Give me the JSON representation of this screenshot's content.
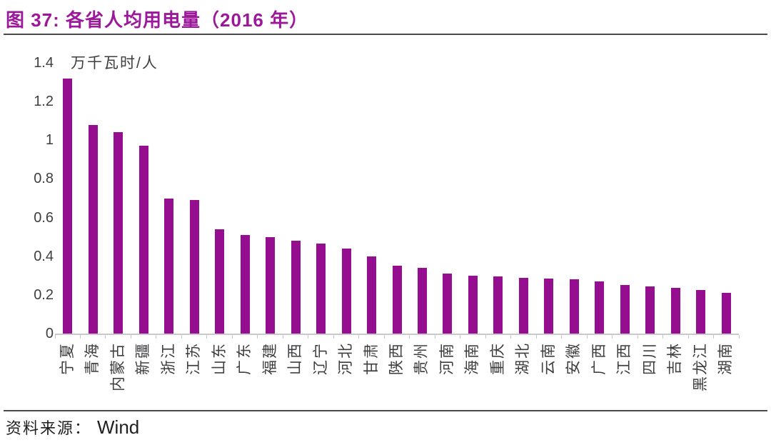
{
  "header": {
    "title": "图 37: 各省人均用电量（2016 年）"
  },
  "footer": {
    "source_label": "资料来源：",
    "source_value": "Wind"
  },
  "colors": {
    "title_accent": "#9C189A",
    "rule": "#4A4A4C",
    "axis": "#C9C9CB",
    "text": "#3E3E40"
  },
  "chart_data": {
    "type": "bar",
    "title": "各省人均用电量（2016 年）",
    "unit_label": "万千瓦时/人",
    "xlabel": "",
    "ylabel": "万千瓦时/人",
    "ylim": [
      0,
      1.4
    ],
    "yticks": [
      1.4,
      1.2,
      1,
      0.8,
      0.6,
      0.4,
      0.2,
      0
    ],
    "grid": false,
    "legend": "none",
    "bar_color": "#950E8F",
    "categories": [
      "宁夏",
      "青海",
      "内蒙古",
      "新疆",
      "浙江",
      "江苏",
      "山东",
      "广东",
      "福建",
      "山西",
      "辽宁",
      "河北",
      "甘肃",
      "陕西",
      "贵州",
      "河南",
      "海南",
      "重庆",
      "湖北",
      "云南",
      "安徽",
      "广西",
      "江西",
      "四川",
      "吉林",
      "黑龙江",
      "湖南"
    ],
    "values": [
      1.32,
      1.08,
      1.04,
      0.97,
      0.7,
      0.69,
      0.54,
      0.51,
      0.5,
      0.48,
      0.465,
      0.44,
      0.4,
      0.35,
      0.34,
      0.31,
      0.3,
      0.295,
      0.29,
      0.285,
      0.28,
      0.27,
      0.25,
      0.245,
      0.235,
      0.225,
      0.21
    ]
  }
}
